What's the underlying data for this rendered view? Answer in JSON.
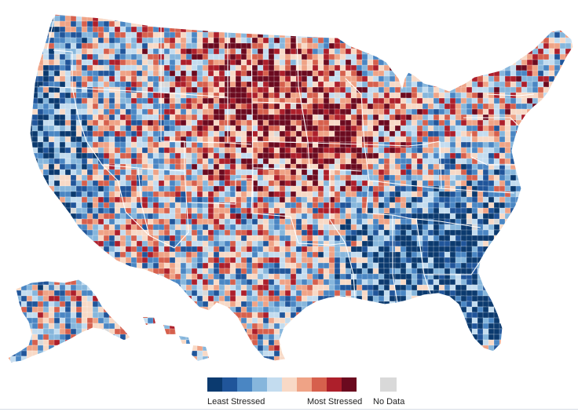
{
  "legend": {
    "least_label": "Least Stressed",
    "most_label": "Most Stressed",
    "nodata_label": "No Data",
    "scale_colors": [
      "#0b3a6f",
      "#20559a",
      "#4a86c3",
      "#86b6dc",
      "#c3dcef",
      "#f8d9c6",
      "#efa386",
      "#d6604d",
      "#ad1f2b",
      "#6b0a1f"
    ],
    "nodata_color": "#d9d9d9"
  },
  "map": {
    "background": "#ffffff",
    "boundary_color": "#ffffff"
  }
}
